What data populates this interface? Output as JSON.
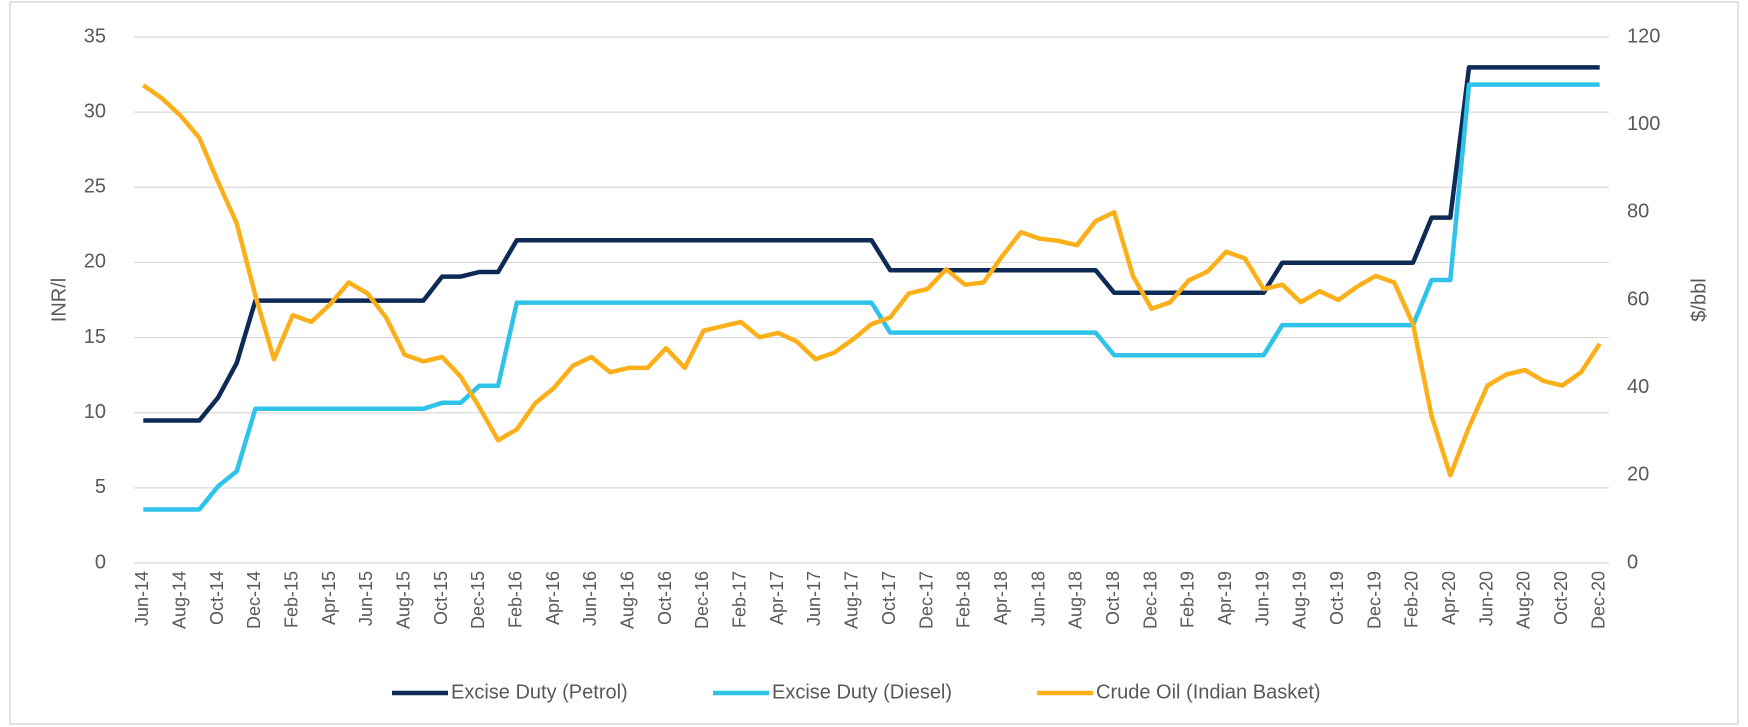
{
  "chart_data": {
    "type": "line",
    "y_label": "INR/l",
    "y2_label": "$/bbl",
    "categories": [
      "Jun-14",
      null,
      "Aug-14",
      null,
      "Oct-14",
      null,
      "Dec-14",
      null,
      "Feb-15",
      null,
      "Apr-15",
      null,
      "Jun-15",
      null,
      "Aug-15",
      null,
      "Oct-15",
      null,
      "Dec-15",
      null,
      "Feb-16",
      null,
      "Apr-16",
      null,
      "Jun-16",
      null,
      "Aug-16",
      null,
      "Oct-16",
      null,
      "Dec-16",
      null,
      "Feb-17",
      null,
      "Apr-17",
      null,
      "Jun-17",
      null,
      "Aug-17",
      null,
      "Oct-17",
      null,
      "Dec-17",
      null,
      "Feb-18",
      null,
      "Apr-18",
      null,
      "Jun-18",
      null,
      "Aug-18",
      null,
      "Oct-18",
      null,
      "Dec-18",
      null,
      "Feb-19",
      null,
      "Apr-19",
      null,
      "Jun-19",
      null,
      "Aug-19",
      null,
      "Oct-19",
      null,
      "Dec-19",
      null,
      "Feb-20",
      null,
      "Apr-20",
      null,
      "Jun-20",
      null,
      "Aug-20",
      null,
      "Oct-20",
      null,
      "Dec-20"
    ],
    "series": [
      {
        "name": "Excise Duty (Petrol)",
        "color": "#0e2a56",
        "values": [
          9.48,
          9.48,
          9.48,
          9.48,
          11.0,
          13.3,
          17.46,
          17.46,
          17.46,
          17.46,
          17.46,
          17.46,
          17.46,
          17.46,
          17.46,
          17.46,
          19.06,
          19.06,
          19.36,
          19.36,
          21.48,
          21.48,
          21.48,
          21.48,
          21.48,
          21.48,
          21.48,
          21.48,
          21.48,
          21.48,
          21.48,
          21.48,
          21.48,
          21.48,
          21.48,
          21.48,
          21.48,
          21.48,
          21.48,
          21.48,
          19.48,
          19.48,
          19.48,
          19.48,
          19.48,
          19.48,
          19.48,
          19.48,
          19.48,
          19.48,
          19.48,
          19.48,
          17.98,
          17.98,
          17.98,
          17.98,
          17.98,
          17.98,
          17.98,
          17.98,
          17.98,
          19.98,
          19.98,
          19.98,
          19.98,
          19.98,
          19.98,
          19.98,
          19.98,
          22.98,
          22.98,
          32.98,
          32.98,
          32.98,
          32.98,
          32.98,
          32.98,
          32.98,
          32.98
        ]
      },
      {
        "name": "Excise Duty (Diesel)",
        "color": "#2fc3ea",
        "values": [
          3.56,
          3.56,
          3.56,
          3.56,
          5.1,
          6.1,
          10.26,
          10.26,
          10.26,
          10.26,
          10.26,
          10.26,
          10.26,
          10.26,
          10.26,
          10.26,
          10.66,
          10.66,
          11.8,
          11.8,
          17.33,
          17.33,
          17.33,
          17.33,
          17.33,
          17.33,
          17.33,
          17.33,
          17.33,
          17.33,
          17.33,
          17.33,
          17.33,
          17.33,
          17.33,
          17.33,
          17.33,
          17.33,
          17.33,
          17.33,
          15.33,
          15.33,
          15.33,
          15.33,
          15.33,
          15.33,
          15.33,
          15.33,
          15.33,
          15.33,
          15.33,
          15.33,
          13.83,
          13.83,
          13.83,
          13.83,
          13.83,
          13.83,
          13.83,
          13.83,
          13.83,
          15.83,
          15.83,
          15.83,
          15.83,
          15.83,
          15.83,
          15.83,
          15.83,
          18.83,
          18.83,
          31.83,
          31.83,
          31.83,
          31.83,
          31.83,
          31.83,
          31.83,
          31.83
        ]
      },
      {
        "name": "Crude Oil (Indian Basket)",
        "color": "#fbb01a",
        "axis": "y2",
        "values": [
          109,
          106,
          102,
          97,
          87,
          77.5,
          61,
          46.5,
          56.5,
          55,
          59,
          64,
          61.5,
          56,
          47.5,
          46,
          47,
          42.5,
          35.5,
          28,
          30.5,
          36.5,
          40,
          45,
          47,
          43.5,
          44.5,
          44.5,
          49,
          44.5,
          53,
          54,
          55,
          51.5,
          52.5,
          50.5,
          46.5,
          48,
          51,
          54.5,
          56,
          61.5,
          62.5,
          67,
          63.5,
          64,
          70,
          75.5,
          74,
          73.5,
          72.5,
          78,
          80,
          65.5,
          58,
          59.5,
          64.5,
          66.5,
          71,
          69.5,
          62.5,
          63.5,
          59.5,
          62,
          60,
          63,
          65.5,
          64,
          54.5,
          33.5,
          20,
          31,
          40.5,
          43,
          44,
          41.5,
          40.5,
          43.5,
          50
        ]
      }
    ],
    "ylim": [
      0,
      35
    ],
    "yticks": [
      0,
      5,
      10,
      15,
      20,
      25,
      30,
      35
    ],
    "y2lim": [
      0,
      120
    ],
    "y2ticks": [
      0,
      20,
      40,
      60,
      80,
      100,
      120
    ],
    "grid": true,
    "legend": "bottom"
  }
}
